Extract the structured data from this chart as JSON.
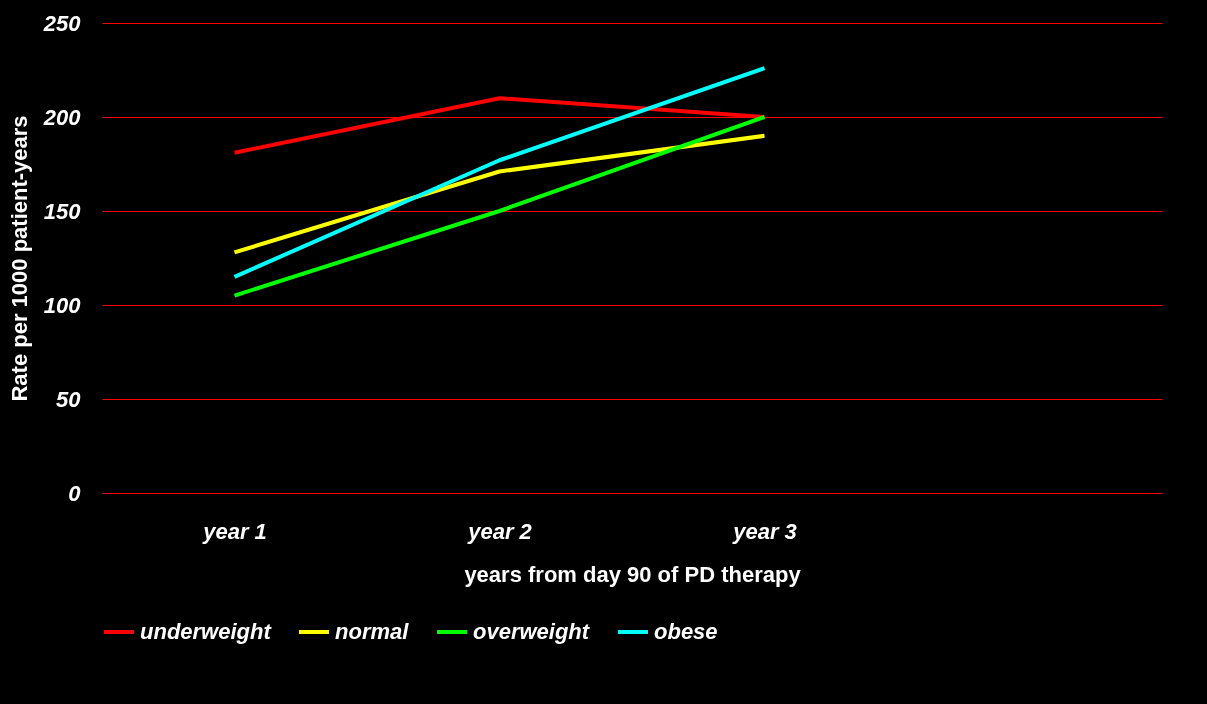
{
  "chart_data": {
    "type": "line",
    "xlabel": "years from day 90 of PD therapy",
    "ylabel": "Rate per 1000 patient-years",
    "categories": [
      "year 1",
      "year 2",
      "year 3",
      null
    ],
    "series": [
      {
        "name": "underweight",
        "color": "#ff0000",
        "values": [
          181,
          210,
          200,
          null
        ]
      },
      {
        "name": "normal",
        "color": "#ffff00",
        "values": [
          128,
          171,
          190,
          null
        ]
      },
      {
        "name": "overweight",
        "color": "#00ff00",
        "values": [
          105,
          150,
          200,
          null
        ]
      },
      {
        "name": "obese",
        "color": "#00ffff",
        "values": [
          115,
          177,
          226,
          null
        ]
      }
    ],
    "ylim": [
      0,
      250
    ],
    "yticks": [
      0,
      50,
      100,
      150,
      200,
      250
    ],
    "grid": "y",
    "legend": "bottom",
    "marker": "none",
    "line_style": "solid"
  }
}
